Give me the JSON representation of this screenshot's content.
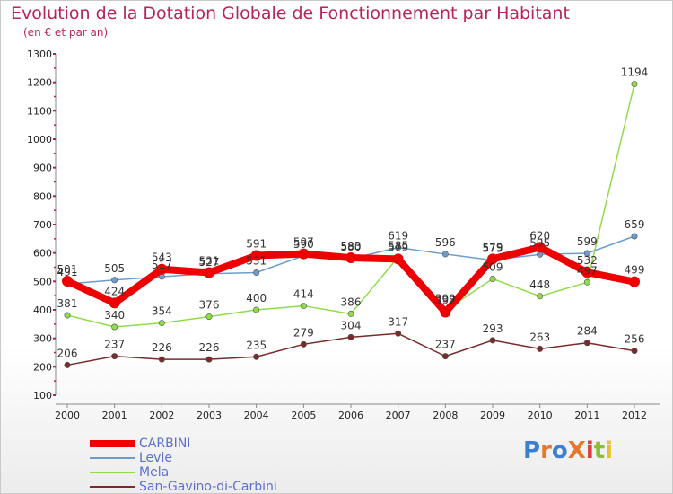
{
  "title": "Evolution de la Dotation Globale de Fonctionnement par Habitant",
  "subtitle": "(en € et par an)",
  "logo": {
    "text": "ProXiti",
    "colors": [
      "#3b7fd1",
      "#e8772e",
      "#3b7fd1",
      "#e8772e",
      "#e23b3b",
      "#8abf35",
      "#e8c12e"
    ]
  },
  "chart_data": {
    "type": "line",
    "title": "Evolution de la Dotation Globale de Fonctionnement par Habitant",
    "subtitle": "(en € et par an)",
    "x": [
      "2000",
      "2001",
      "2002",
      "2003",
      "2004",
      "2005",
      "2006",
      "2007",
      "2008",
      "2009",
      "2010",
      "2011",
      "2012"
    ],
    "ylim": [
      100,
      1300
    ],
    "yticks": [
      100,
      200,
      300,
      400,
      500,
      600,
      700,
      800,
      900,
      1000,
      1100,
      1200,
      1300
    ],
    "grid": false,
    "legend_position": "bottom-left",
    "series": [
      {
        "name": "CARBINI",
        "color": "#ee0000",
        "values": [
          501,
          424,
          543,
          531,
          591,
          597,
          583,
          579,
          392,
          579,
          620,
          532,
          499
        ],
        "labels": [
          "501",
          "424",
          "543",
          "531",
          "591",
          "597",
          "583",
          "579",
          "392",
          "579",
          "620",
          "532",
          "499"
        ]
      },
      {
        "name": "Levie",
        "color": "#6c9ccc",
        "values": [
          491,
          505,
          517,
          527,
          531,
          590,
          580,
          619,
          596,
          575,
          595,
          599,
          659
        ],
        "labels": [
          "491",
          "505",
          "517",
          "527",
          "531",
          "590",
          "580",
          "619",
          "596",
          "575",
          "595",
          "599",
          "659"
        ]
      },
      {
        "name": "Mela",
        "color": "#8fdc4a",
        "values": [
          381,
          340,
          354,
          376,
          400,
          414,
          386,
          585,
          399,
          509,
          448,
          497,
          1194
        ],
        "labels": [
          "381",
          "340",
          "354",
          "376",
          "400",
          "414",
          "386",
          "585",
          "399",
          "509",
          "448",
          "497",
          "1194"
        ]
      },
      {
        "name": "San-Gavino-di-Carbini",
        "color": "#7a2a2a",
        "values": [
          206,
          237,
          226,
          226,
          235,
          279,
          304,
          317,
          237,
          293,
          263,
          284,
          256
        ],
        "labels": [
          "206",
          "237",
          "226",
          "226",
          "235",
          "279",
          "304",
          "317",
          "237",
          "293",
          "263",
          "284",
          "256"
        ]
      }
    ]
  }
}
